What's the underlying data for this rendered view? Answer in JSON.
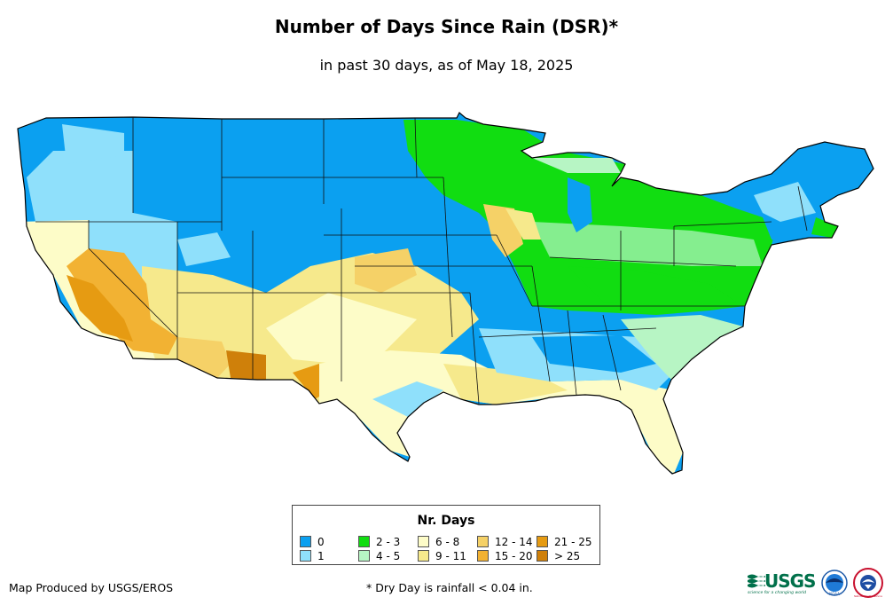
{
  "title": "Number of Days Since Rain (DSR)*",
  "subtitle": "in past 30 days, as of May 18, 2025",
  "legend": {
    "title": "Nr. Days",
    "items": [
      {
        "label": "0",
        "color": "#0ba0f0"
      },
      {
        "label": "1",
        "color": "#8fe0fb"
      },
      {
        "label": "2 - 3",
        "color": "#11dd11"
      },
      {
        "label": "4 - 5",
        "color": "#b7f5c4"
      },
      {
        "label": "6 - 8",
        "color": "#fdfcc8"
      },
      {
        "label": "9 - 11",
        "color": "#f6e98c"
      },
      {
        "label": "12 - 14",
        "color": "#f5d167"
      },
      {
        "label": "15 - 20",
        "color": "#f2b233"
      },
      {
        "label": "21 - 25",
        "color": "#e69b12"
      },
      {
        "label": "> 25",
        "color": "#cf800a"
      }
    ]
  },
  "credit": "Map Produced by USGS/EROS",
  "footnote": "* Dry Day is rainfall < 0.04 in.",
  "logos": {
    "usgs_text": "USGS",
    "usgs_tagline": "science for a changing world",
    "noaa_text": "NOAA",
    "nws_name": "National Weather Service"
  },
  "colors": {
    "state_border": "#111111",
    "map_outline": "#000000"
  }
}
